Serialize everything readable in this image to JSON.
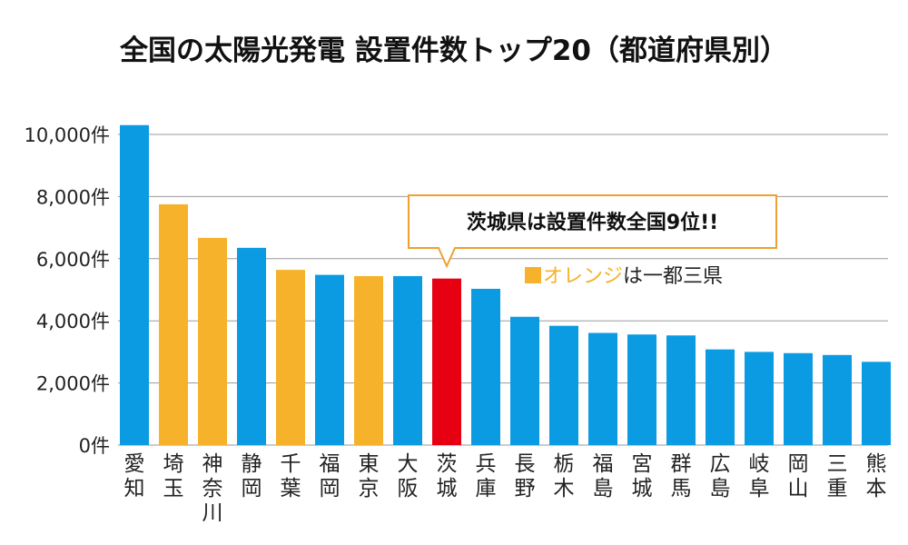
{
  "chart_data": {
    "type": "bar",
    "title": "全国の太陽光発電 設置件数トップ20（都道府県別）",
    "xlabel": "",
    "ylabel": "",
    "ylim": [
      0,
      10000
    ],
    "y_ticks": [
      {
        "value": 0,
        "label": "0件"
      },
      {
        "value": 2000,
        "label": "2,000件"
      },
      {
        "value": 4000,
        "label": "4,000件"
      },
      {
        "value": 6000,
        "label": "6,000件"
      },
      {
        "value": 8000,
        "label": "8,000件"
      },
      {
        "value": 10000,
        "label": "10,000件"
      }
    ],
    "grid": true,
    "categories": [
      "愛知",
      "埼玉",
      "神奈川",
      "静岡",
      "千葉",
      "福岡",
      "東京",
      "大阪",
      "茨城",
      "兵庫",
      "長野",
      "栃木",
      "福島",
      "宮城",
      "群馬",
      "広島",
      "岐阜",
      "岡山",
      "三重",
      "熊本"
    ],
    "values": [
      10300,
      7750,
      6670,
      6350,
      5640,
      5480,
      5440,
      5440,
      5360,
      5030,
      4130,
      3840,
      3610,
      3560,
      3530,
      3080,
      3000,
      2960,
      2900,
      2680
    ],
    "bar_colors": [
      "#0a9be3",
      "#f5b22a",
      "#f5b22a",
      "#0a9be3",
      "#f5b22a",
      "#0a9be3",
      "#f5b22a",
      "#0a9be3",
      "#e60012",
      "#0a9be3",
      "#0a9be3",
      "#0a9be3",
      "#0a9be3",
      "#0a9be3",
      "#0a9be3",
      "#0a9be3",
      "#0a9be3",
      "#0a9be3",
      "#0a9be3",
      "#0a9be3"
    ],
    "colors": {
      "default": "#0a9be3",
      "capital_region": "#f5b22a",
      "highlight": "#e60012"
    },
    "callout": {
      "text": "茨城県は設置件数全国9位!!",
      "target_category": "茨城"
    },
    "legend_note": {
      "colored_text": "オレンジ",
      "rest_text": "は一都三県",
      "color": "#f5b22a"
    }
  }
}
